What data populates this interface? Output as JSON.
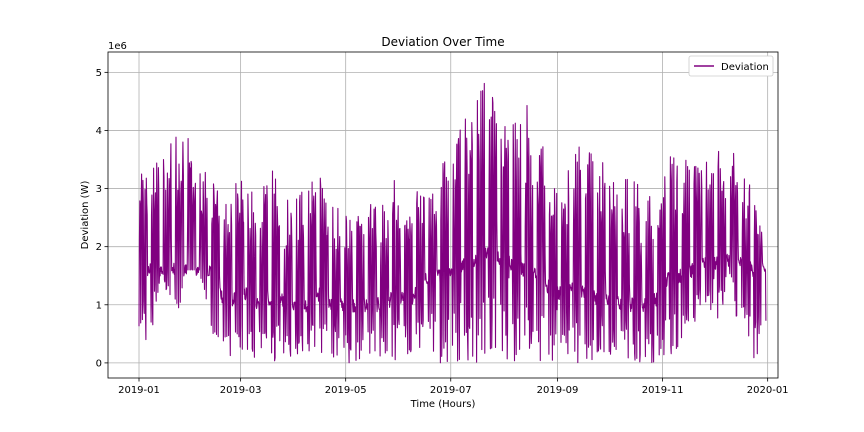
{
  "chart_data": {
    "type": "line",
    "title": "Deviation Over Time",
    "xlabel": "Time (Hours)",
    "ylabel": "Deviation (W)",
    "y_scale_label": "1e6",
    "xlim": [
      "2018-12-14",
      "2020-01-07"
    ],
    "ylim": [
      -0.26,
      5.35
    ],
    "y_multiplier": 1000000,
    "x_ticks": [
      "2019-01",
      "2019-03",
      "2019-05",
      "2019-07",
      "2019-09",
      "2019-11",
      "2020-01"
    ],
    "y_ticks": [
      0,
      1,
      2,
      3,
      4,
      5
    ],
    "grid": true,
    "legend_position": "top-right",
    "series": [
      {
        "name": "Deviation",
        "color": "#800080",
        "envelope_dates": [
          "2019-01-01",
          "2019-01-08",
          "2019-01-15",
          "2019-01-22",
          "2019-01-29",
          "2019-02-05",
          "2019-02-12",
          "2019-02-19",
          "2019-02-26",
          "2019-03-05",
          "2019-03-12",
          "2019-03-19",
          "2019-03-26",
          "2019-04-02",
          "2019-04-09",
          "2019-04-16",
          "2019-04-23",
          "2019-04-30",
          "2019-05-07",
          "2019-05-14",
          "2019-05-21",
          "2019-05-28",
          "2019-06-04",
          "2019-06-11",
          "2019-06-18",
          "2019-06-25",
          "2019-07-02",
          "2019-07-09",
          "2019-07-16",
          "2019-07-23",
          "2019-07-30",
          "2019-08-06",
          "2019-08-13",
          "2019-08-20",
          "2019-08-27",
          "2019-09-03",
          "2019-09-10",
          "2019-09-17",
          "2019-09-24",
          "2019-10-01",
          "2019-10-08",
          "2019-10-15",
          "2019-10-22",
          "2019-10-29",
          "2019-11-05",
          "2019-11-12",
          "2019-11-19",
          "2019-11-26",
          "2019-12-03",
          "2019-12-10",
          "2019-12-17",
          "2019-12-24",
          "2019-12-31"
        ],
        "peak_values": [
          3.3,
          3.8,
          3.6,
          3.9,
          3.9,
          3.5,
          3.3,
          3.2,
          3.1,
          3.2,
          2.9,
          3.4,
          2.8,
          2.9,
          3.0,
          3.5,
          2.8,
          2.9,
          2.7,
          2.8,
          2.9,
          3.3,
          2.8,
          3.0,
          3.6,
          3.5,
          3.7,
          4.2,
          4.6,
          5.1,
          4.4,
          4.3,
          4.6,
          4.3,
          3.3,
          3.0,
          3.7,
          3.8,
          3.4,
          3.8,
          3.3,
          3.2,
          2.9,
          3.0,
          3.6,
          3.5,
          3.5,
          3.6,
          3.7,
          4.0,
          3.5,
          2.9,
          2.6
        ],
        "trough_values": [
          0.0,
          0.4,
          1.5,
          0.5,
          1.6,
          1.6,
          0.5,
          0.1,
          0.1,
          0.0,
          0.1,
          0.0,
          0.1,
          0.1,
          0.1,
          0.1,
          0.0,
          0.0,
          0.0,
          0.1,
          0.0,
          0.0,
          0.1,
          0.0,
          0.0,
          0.0,
          0.0,
          0.0,
          0.0,
          0.1,
          0.0,
          0.0,
          0.1,
          0.0,
          0.0,
          0.0,
          0.0,
          0.0,
          0.0,
          0.0,
          0.0,
          0.0,
          0.0,
          0.0,
          0.1,
          0.3,
          0.6,
          1.0,
          0.7,
          1.3,
          0.3,
          0.0,
          0.2
        ],
        "baseline_values": [
          1.6,
          1.6,
          1.6,
          1.6,
          1.6,
          1.6,
          1.6,
          1.1,
          1.1,
          1.2,
          1.0,
          1.0,
          1.1,
          1.0,
          1.0,
          1.2,
          1.0,
          1.0,
          1.0,
          1.0,
          1.0,
          1.1,
          1.1,
          1.2,
          1.5,
          1.5,
          1.6,
          1.7,
          1.8,
          1.9,
          1.8,
          1.7,
          1.6,
          1.5,
          1.3,
          1.2,
          1.3,
          1.2,
          1.1,
          1.1,
          1.0,
          1.0,
          1.0,
          1.1,
          1.5,
          1.5,
          1.6,
          1.7,
          1.7,
          1.8,
          1.7,
          1.6,
          1.6
        ]
      }
    ]
  }
}
